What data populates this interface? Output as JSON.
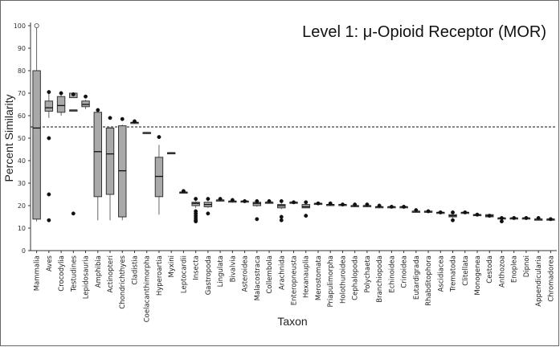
{
  "chart_data": {
    "type": "box",
    "title": "Level 1: μ-Opioid Receptor (MOR)",
    "xlabel": "Taxon",
    "ylabel": "Percent Similarity",
    "ylim": [
      0,
      100
    ],
    "yticks": [
      0,
      10,
      20,
      30,
      40,
      50,
      60,
      70,
      80,
      90,
      100
    ],
    "reference_line": 55,
    "grid": false,
    "categories": [
      "Mammalia",
      "Aves",
      "Crocodylia",
      "Testudines",
      "Lepidosauria",
      "Amphibia",
      "Actinopteri",
      "Chondrichthyes",
      "Cladistia",
      "Coelacanthimorpha",
      "Hyperoartia",
      "Myxini",
      "Leptocardii",
      "Insecta",
      "Gastropoda",
      "Lingulata",
      "Bivalvia",
      "Asteroidea",
      "Malacostraca",
      "Collembola",
      "Arachnida",
      "Enteropneusta",
      "Hexanauplia",
      "Merostomata",
      "Priapulimorpha",
      "Holothuroidea",
      "Cephalopoda",
      "Polychaeta",
      "Branchiopoda",
      "Echinoidea",
      "Crinoidea",
      "Eutardigrada",
      "Rhabditophora",
      "Ascidiacea",
      "Trematoda",
      "Clitellata",
      "Monogenea",
      "Cestoda",
      "Anthozoa",
      "Enoplea",
      "Dipnoi",
      "Appendicularia",
      "Chromadorea"
    ],
    "boxes": [
      {
        "whislo": 13,
        "q1": 14,
        "med": 54.5,
        "q3": 80,
        "whishi": 100,
        "outliers": [
          100
        ],
        "outlier_style": "open"
      },
      {
        "whislo": 59,
        "q1": 62,
        "med": 63.5,
        "q3": 66.5,
        "whishi": 70,
        "outliers": [
          70.5,
          50,
          25,
          13.5
        ]
      },
      {
        "whislo": 60,
        "q1": 61.5,
        "med": 64.5,
        "q3": 68.5,
        "whishi": 70,
        "outliers": [
          70
        ]
      },
      {
        "whislo": 62.5,
        "q1": 62.5,
        "med": 62.5,
        "q3": 62.5,
        "whishi": 62.5,
        "outliers": [
          69.5,
          16.5
        ],
        "box": [
          68,
          70
        ]
      },
      {
        "whislo": 63,
        "q1": 64,
        "med": 65,
        "q3": 66.5,
        "whishi": 67,
        "outliers": [
          68.5
        ]
      },
      {
        "whislo": 13.5,
        "q1": 24,
        "med": 44,
        "q3": 61.5,
        "whishi": 62,
        "outliers": [
          62.5
        ]
      },
      {
        "whislo": 13.5,
        "q1": 25,
        "med": 43,
        "q3": 54.5,
        "whishi": 55,
        "outliers": [
          59
        ]
      },
      {
        "whislo": 13.5,
        "q1": 15,
        "med": 35.5,
        "q3": 55.5,
        "whishi": 56,
        "outliers": [
          58.5
        ]
      },
      {
        "whislo": 57,
        "q1": 57,
        "med": 57,
        "q3": 57,
        "whishi": 57,
        "outliers": [
          57.5
        ]
      },
      {
        "whislo": 52.5,
        "q1": 52.5,
        "med": 52.5,
        "q3": 52.5,
        "whishi": 52.5,
        "outliers": []
      },
      {
        "whislo": 16,
        "q1": 24,
        "med": 33,
        "q3": 41.5,
        "whishi": 47,
        "outliers": [
          50.5
        ]
      },
      {
        "whislo": 43.5,
        "q1": 43.5,
        "med": 43.5,
        "q3": 43.5,
        "whishi": 43.5,
        "outliers": []
      },
      {
        "whislo": 26,
        "q1": 26,
        "med": 26,
        "q3": 26,
        "whishi": 26,
        "outliers": [
          26.5
        ]
      },
      {
        "whislo": 19,
        "q1": 20,
        "med": 21,
        "q3": 21.5,
        "whishi": 22,
        "outliers": [
          23,
          17.5,
          16.5,
          15.5,
          14.5,
          13.5,
          13
        ]
      },
      {
        "whislo": 19,
        "q1": 19.5,
        "med": 20.5,
        "q3": 21.5,
        "whishi": 22,
        "outliers": [
          23,
          16.5
        ]
      },
      {
        "whislo": 22.5,
        "q1": 22.5,
        "med": 22.5,
        "q3": 22.5,
        "whishi": 22.5,
        "outliers": [
          23
        ]
      },
      {
        "whislo": 22,
        "q1": 22,
        "med": 22,
        "q3": 22,
        "whishi": 22,
        "outliers": [
          22.5
        ]
      },
      {
        "whislo": 22,
        "q1": 22,
        "med": 22,
        "q3": 22,
        "whishi": 22,
        "outliers": [
          22
        ]
      },
      {
        "whislo": 19.5,
        "q1": 20,
        "med": 21,
        "q3": 21.5,
        "whishi": 22,
        "outliers": [
          22,
          14
        ]
      },
      {
        "whislo": 21.5,
        "q1": 21.5,
        "med": 21.5,
        "q3": 21.5,
        "whishi": 21.5,
        "outliers": [
          22
        ]
      },
      {
        "whislo": 18.5,
        "q1": 19,
        "med": 20,
        "q3": 20.5,
        "whishi": 21,
        "outliers": [
          22,
          15,
          13.5
        ]
      },
      {
        "whislo": 21.5,
        "q1": 21.5,
        "med": 21.5,
        "q3": 21.5,
        "whishi": 21.5,
        "outliers": [
          21.5
        ]
      },
      {
        "whislo": 19,
        "q1": 19,
        "med": 19.5,
        "q3": 20.5,
        "whishi": 21,
        "outliers": [
          21.5,
          15.5
        ]
      },
      {
        "whislo": 21,
        "q1": 21,
        "med": 21,
        "q3": 21,
        "whishi": 21,
        "outliers": [
          21
        ]
      },
      {
        "whislo": 20.5,
        "q1": 20.5,
        "med": 20.5,
        "q3": 20.5,
        "whishi": 20.5,
        "outliers": [
          21
        ]
      },
      {
        "whislo": 20.5,
        "q1": 20.5,
        "med": 20.5,
        "q3": 20.5,
        "whishi": 20.5,
        "outliers": [
          20.5
        ]
      },
      {
        "whislo": 20,
        "q1": 20,
        "med": 20,
        "q3": 20,
        "whishi": 20,
        "outliers": [
          20.5
        ]
      },
      {
        "whislo": 20,
        "q1": 20,
        "med": 20,
        "q3": 20,
        "whishi": 20,
        "outliers": [
          20.5
        ]
      },
      {
        "whislo": 19.5,
        "q1": 19.5,
        "med": 19.5,
        "q3": 19.5,
        "whishi": 19.5,
        "outliers": [
          20
        ]
      },
      {
        "whislo": 19.5,
        "q1": 19.5,
        "med": 19.5,
        "q3": 19.5,
        "whishi": 19.5,
        "outliers": [
          19.5
        ]
      },
      {
        "whislo": 19.5,
        "q1": 19.5,
        "med": 19.5,
        "q3": 19.5,
        "whishi": 19.5,
        "outliers": [
          19.5
        ]
      },
      {
        "whislo": 17.5,
        "q1": 17.5,
        "med": 17.5,
        "q3": 17.5,
        "whishi": 17.5,
        "outliers": [
          18
        ]
      },
      {
        "whislo": 17.5,
        "q1": 17.5,
        "med": 17.5,
        "q3": 17.5,
        "whishi": 17.5,
        "outliers": [
          17.5
        ]
      },
      {
        "whislo": 17,
        "q1": 17,
        "med": 17,
        "q3": 17,
        "whishi": 17,
        "outliers": [
          17
        ]
      },
      {
        "whislo": 14.5,
        "q1": 15,
        "med": 15.5,
        "q3": 16,
        "whishi": 16.5,
        "outliers": [
          17,
          13.5
        ]
      },
      {
        "whislo": 17,
        "q1": 17,
        "med": 17,
        "q3": 17,
        "whishi": 17,
        "outliers": [
          17
        ]
      },
      {
        "whislo": 16,
        "q1": 16,
        "med": 16,
        "q3": 16,
        "whishi": 16,
        "outliers": [
          16
        ]
      },
      {
        "whislo": 15,
        "q1": 15,
        "med": 15.5,
        "q3": 16,
        "whishi": 16,
        "outliers": [
          15.5
        ]
      },
      {
        "whislo": 13.5,
        "q1": 14,
        "med": 14.5,
        "q3": 14.5,
        "whishi": 15,
        "outliers": [
          14.5,
          13
        ]
      },
      {
        "whislo": 14,
        "q1": 14,
        "med": 14.5,
        "q3": 14.5,
        "whishi": 14.5,
        "outliers": [
          14.5
        ]
      },
      {
        "whislo": 14.5,
        "q1": 14.5,
        "med": 14.5,
        "q3": 14.5,
        "whishi": 14.5,
        "outliers": [
          14.5
        ]
      },
      {
        "whislo": 14,
        "q1": 14,
        "med": 14,
        "q3": 14,
        "whishi": 14,
        "outliers": [
          14.5
        ]
      },
      {
        "whislo": 14,
        "q1": 14,
        "med": 14,
        "q3": 14,
        "whishi": 14,
        "outliers": [
          14
        ]
      }
    ]
  }
}
